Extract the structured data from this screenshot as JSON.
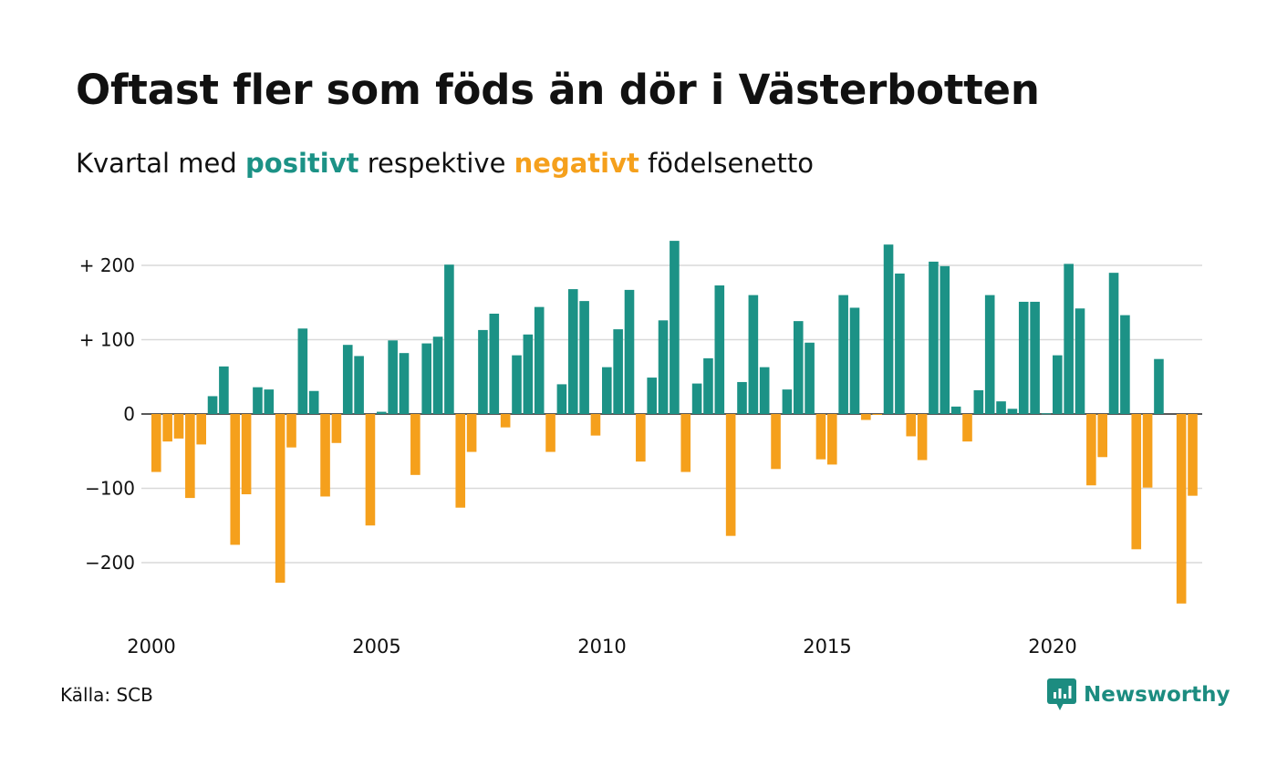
{
  "header": {
    "title": "Oftast fler som föds än dör i Västerbotten",
    "subtitle_prefix": "Kvartal med",
    "subtitle_positive": "positivt",
    "subtitle_middle": "respektive",
    "subtitle_negative": "negativt",
    "subtitle_suffix": "födelsenetto"
  },
  "footer": {
    "source": "Källa: SCB",
    "brand": "Newsworthy",
    "brand_icon": "newsworthy-logo-icon"
  },
  "colors": {
    "positive": "#1c9286",
    "negative": "#f5a01c",
    "grid": "#d9d9d9",
    "text": "#111111"
  },
  "chart_data": {
    "type": "bar",
    "title": "Oftast fler som föds än dör i Västerbotten",
    "subtitle": "Kvartal med positivt respektive negativt födelsenetto",
    "xlabel": "",
    "ylabel": "",
    "x_start": 2000,
    "periods_per_year": 4,
    "ylim": [
      -265,
      235
    ],
    "yticks": [
      {
        "value": 200,
        "label": "+ 200"
      },
      {
        "value": 100,
        "label": "+ 100"
      },
      {
        "value": 0,
        "label": "0"
      },
      {
        "value": -100,
        "label": "−100"
      },
      {
        "value": -200,
        "label": "−200"
      }
    ],
    "xticks": [
      {
        "value": 2000,
        "label": "2000"
      },
      {
        "value": 2005,
        "label": "2005"
      },
      {
        "value": 2010,
        "label": "2010"
      },
      {
        "value": 2015,
        "label": "2015"
      },
      {
        "value": 2020,
        "label": "2020"
      }
    ],
    "grid": true,
    "legend": "none",
    "series": [
      {
        "values": [
          -78,
          -37,
          -33,
          -113,
          -41,
          24,
          64,
          -176,
          -108,
          36,
          33,
          -227,
          -45,
          115,
          31,
          -111,
          -39,
          93,
          78,
          -150,
          3,
          99,
          82,
          -82,
          95,
          104,
          201,
          -126,
          -51,
          113,
          135,
          -18,
          79,
          107,
          144,
          -51,
          40,
          168,
          152,
          -29,
          63,
          114,
          167,
          -64,
          49,
          126,
          233,
          -78,
          41,
          75,
          173,
          -164,
          43,
          160,
          63,
          -74,
          33,
          125,
          96,
          -61,
          -68,
          160,
          143,
          -8,
          -1,
          228,
          189,
          -30,
          -62,
          205,
          199,
          10,
          -37,
          32,
          160,
          17,
          7,
          151,
          151,
          1,
          79,
          202,
          142,
          -96,
          -58,
          190,
          133,
          -182,
          -99,
          74,
          0,
          -255,
          -110
        ]
      }
    ]
  }
}
